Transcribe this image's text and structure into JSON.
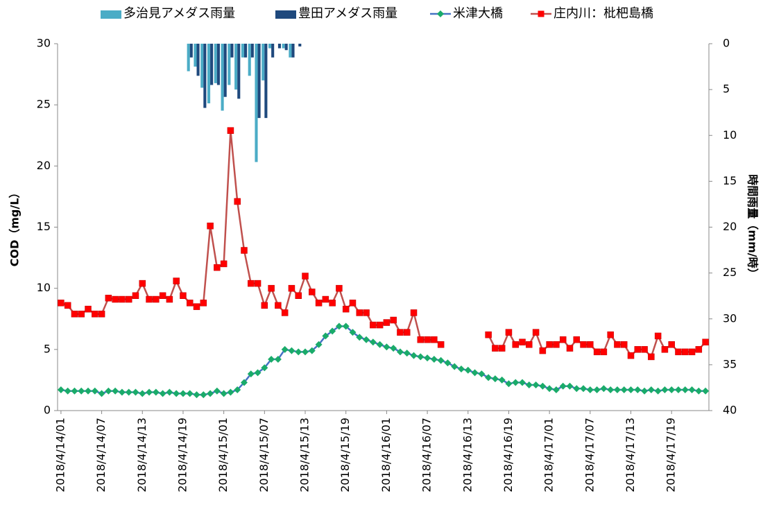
{
  "chart_data": {
    "type": "combo",
    "categories": [
      "2018/4/14/01",
      null,
      null,
      null,
      null,
      null,
      "2018/4/14/07",
      null,
      null,
      null,
      null,
      null,
      "2018/4/14/13",
      null,
      null,
      null,
      null,
      null,
      "2018/4/14/19",
      null,
      null,
      null,
      null,
      null,
      "2018/4/15/01",
      null,
      null,
      null,
      null,
      null,
      "2018/4/15/07",
      null,
      null,
      null,
      null,
      null,
      "2018/4/15/13",
      null,
      null,
      null,
      null,
      null,
      "2018/4/15/19",
      null,
      null,
      null,
      null,
      null,
      "2018/4/16/01",
      null,
      null,
      null,
      null,
      null,
      "2018/4/16/07",
      null,
      null,
      null,
      null,
      null,
      "2018/4/16/13",
      null,
      null,
      null,
      null,
      null,
      "2018/4/16/19",
      null,
      null,
      null,
      null,
      null,
      "2018/4/17/01",
      null,
      null,
      null,
      null,
      null,
      "2018/4/17/07",
      null,
      null,
      null,
      null,
      null,
      "2018/4/17/13",
      null,
      null,
      null,
      null,
      null,
      "2018/4/17/19",
      null,
      null,
      null,
      null,
      null
    ],
    "ylabel": "COD（mg/L）",
    "y2label": "時間雨量（mm/時）",
    "ylim": [
      0,
      30
    ],
    "yticks": [
      0,
      5,
      10,
      15,
      20,
      25,
      30
    ],
    "y2lim": [
      0,
      40
    ],
    "y2ticks": [
      0,
      5,
      10,
      15,
      20,
      25,
      30,
      35,
      40
    ],
    "y2_inverted": true,
    "series": [
      {
        "name": "多治見アメダス雨量",
        "type": "bar",
        "axis": "y2",
        "color": "#4bacc6",
        "values": [
          0,
          0,
          0,
          0,
          0,
          0,
          0,
          0,
          0,
          0,
          0,
          0,
          0,
          0,
          0,
          0,
          0,
          0,
          0,
          3,
          2.5,
          4.8,
          6.5,
          4.3,
          7.3,
          4.5,
          5,
          1.5,
          3.5,
          12.9,
          4,
          0.5,
          0,
          0.5,
          1.5,
          0,
          0,
          0,
          0,
          0,
          0,
          0,
          0,
          0,
          0,
          0,
          0,
          0,
          0,
          0,
          0,
          0,
          0,
          0,
          0,
          0,
          0,
          0,
          0,
          0,
          0,
          0,
          0,
          0,
          0,
          0,
          0,
          0,
          0,
          0,
          0,
          0,
          0,
          0,
          0,
          0,
          0,
          0,
          0,
          0,
          0,
          0,
          0,
          0,
          0,
          0,
          0,
          0,
          0,
          0,
          0,
          0,
          0,
          0,
          0,
          0
        ]
      },
      {
        "name": "豊田アメダス雨量",
        "type": "bar",
        "axis": "y2",
        "color": "#1f497d",
        "values": [
          0,
          0,
          0,
          0,
          0,
          0,
          0,
          0,
          0,
          0,
          0,
          0,
          0,
          0,
          0,
          0,
          0,
          0,
          0,
          1.5,
          3.5,
          7,
          4.5,
          4.5,
          5.8,
          1.5,
          6,
          1.5,
          1.5,
          8.1,
          8.1,
          1.5,
          0.5,
          0.7,
          1.5,
          0.3,
          0,
          0,
          0,
          0,
          0,
          0,
          0,
          0,
          0,
          0,
          0,
          0,
          0,
          0,
          0,
          0,
          0,
          0,
          0,
          0,
          0,
          0,
          0,
          0,
          0,
          0,
          0,
          0,
          0,
          0,
          0,
          0,
          0,
          0,
          0,
          0,
          0,
          0,
          0,
          0,
          0,
          0,
          0,
          0,
          0,
          0,
          0,
          0,
          0,
          0,
          0,
          0,
          0,
          0,
          0,
          0,
          0,
          0,
          0,
          0
        ]
      },
      {
        "name": "米津大橋",
        "type": "line",
        "color": "#4472c4",
        "marker": "diamond",
        "marker_color": "#1aab6a",
        "values": [
          1.7,
          1.6,
          1.6,
          1.6,
          1.6,
          1.6,
          1.4,
          1.6,
          1.6,
          1.5,
          1.5,
          1.5,
          1.4,
          1.5,
          1.5,
          1.4,
          1.5,
          1.4,
          1.4,
          1.4,
          1.3,
          1.3,
          1.4,
          1.6,
          1.4,
          1.5,
          1.7,
          2.3,
          3.0,
          3.1,
          3.5,
          4.2,
          4.2,
          5.0,
          4.9,
          4.8,
          4.8,
          4.9,
          5.4,
          6.1,
          6.5,
          6.9,
          6.9,
          6.4,
          6.0,
          5.8,
          5.6,
          5.4,
          5.2,
          5.1,
          4.8,
          4.7,
          4.5,
          4.4,
          4.3,
          4.2,
          4.1,
          3.9,
          3.6,
          3.4,
          3.3,
          3.1,
          3.0,
          2.7,
          2.6,
          2.5,
          2.2,
          2.3,
          2.3,
          2.1,
          2.1,
          2.0,
          1.8,
          1.7,
          2.0,
          2.0,
          1.8,
          1.8,
          1.7,
          1.7,
          1.8,
          1.7,
          1.7,
          1.7,
          1.7,
          1.7,
          1.6,
          1.7,
          1.6,
          1.7,
          1.7,
          1.7,
          1.7,
          1.7,
          1.6,
          1.6
        ]
      },
      {
        "name": "庄内川：枇杷島橋",
        "type": "line",
        "color": "#c0504d",
        "marker": "square",
        "marker_color": "#ff0000",
        "values": [
          8.8,
          8.6,
          7.9,
          7.9,
          8.3,
          7.9,
          7.9,
          9.2,
          9.1,
          9.1,
          9.1,
          9.4,
          10.4,
          9.1,
          9.1,
          9.4,
          9.1,
          10.6,
          9.4,
          8.8,
          8.5,
          8.8,
          15.1,
          11.7,
          12.0,
          22.9,
          17.1,
          13.1,
          10.4,
          10.4,
          8.6,
          10.0,
          8.6,
          8.0,
          10.0,
          9.4,
          11.0,
          9.7,
          8.8,
          9.1,
          8.8,
          10.0,
          8.3,
          8.8,
          8.0,
          8.0,
          7.0,
          7.0,
          7.2,
          7.4,
          6.4,
          6.4,
          8.0,
          5.8,
          5.8,
          5.8,
          5.4,
          null,
          null,
          null,
          null,
          null,
          null,
          6.2,
          5.1,
          5.1,
          6.4,
          5.4,
          5.6,
          5.4,
          6.4,
          4.9,
          5.4,
          5.4,
          5.8,
          5.1,
          5.8,
          5.4,
          5.4,
          4.8,
          4.8,
          6.2,
          5.4,
          5.4,
          4.5,
          5.0,
          5.0,
          4.4,
          6.1,
          5.0,
          5.4,
          4.8,
          4.8,
          4.8,
          5.0,
          5.6
        ]
      }
    ]
  }
}
